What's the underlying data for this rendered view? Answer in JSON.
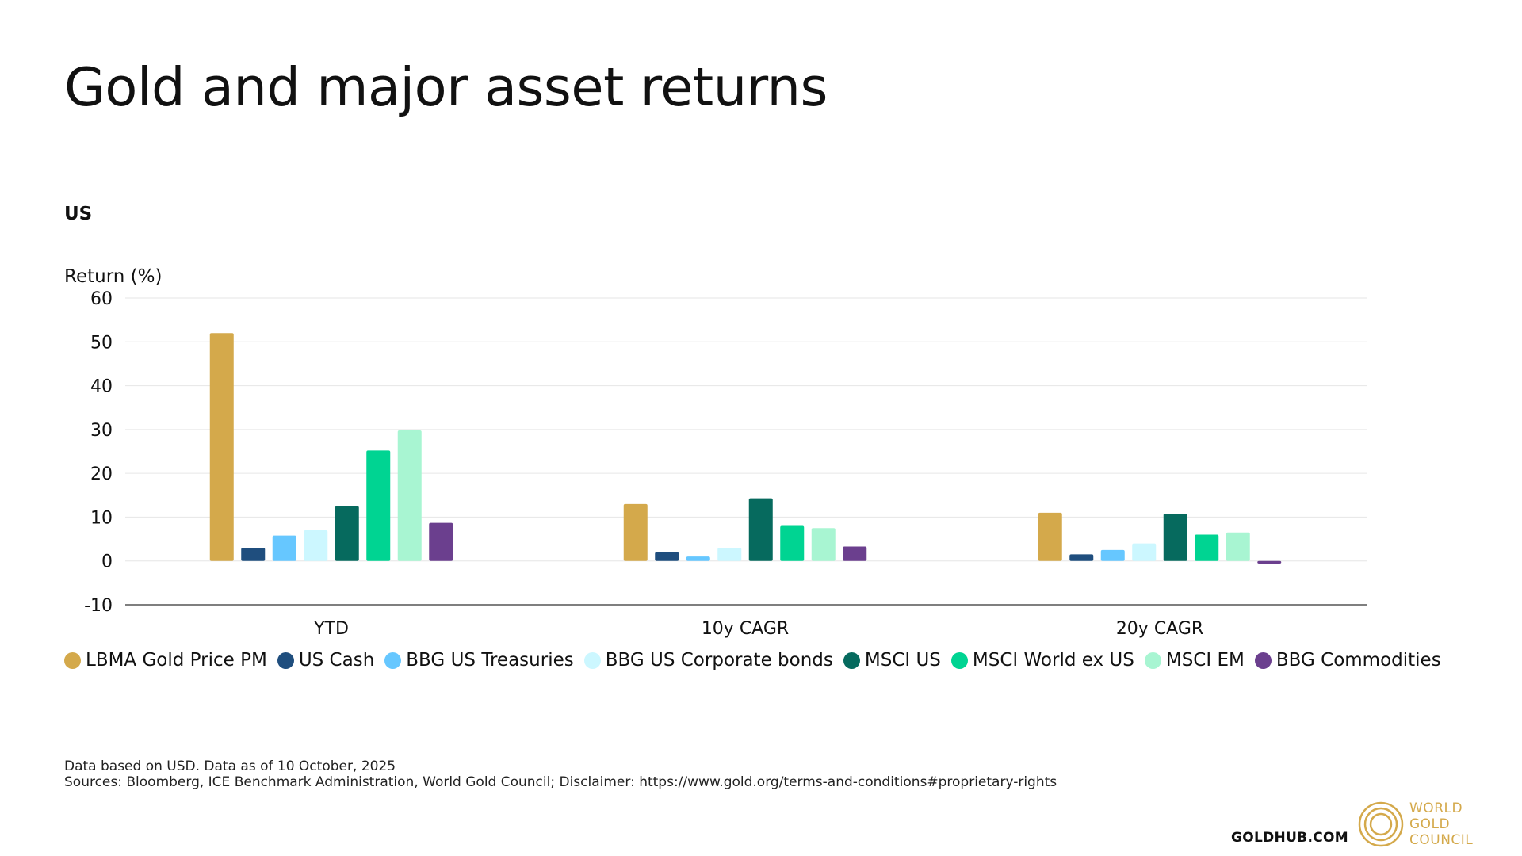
{
  "title": "Gold and major asset returns",
  "subtitle": "US",
  "chart_data": {
    "type": "bar",
    "ylabel": "Return (%)",
    "ylim": [
      -10,
      60
    ],
    "yticks": [
      60,
      50,
      40,
      30,
      20,
      10,
      0,
      -10
    ],
    "grid": true,
    "legend_position": "bottom",
    "categories": [
      "YTD",
      "10y CAGR",
      "20y CAGR"
    ],
    "series": [
      {
        "name": "LBMA Gold Price PM",
        "color": "#d4a94b",
        "values": [
          52,
          13,
          11
        ]
      },
      {
        "name": "US Cash",
        "color": "#1f4e7e",
        "values": [
          3,
          2,
          1.5
        ]
      },
      {
        "name": "BBG US Treasuries",
        "color": "#66c7ff",
        "values": [
          5.8,
          1,
          2.5
        ]
      },
      {
        "name": "BBG US Corporate bonds",
        "color": "#ccf7ff",
        "values": [
          7,
          3,
          4
        ]
      },
      {
        "name": "MSCI US",
        "color": "#066a5e",
        "values": [
          12.5,
          14.3,
          10.8
        ]
      },
      {
        "name": "MSCI World ex US",
        "color": "#00d492",
        "values": [
          25.2,
          8,
          6
        ]
      },
      {
        "name": "MSCI EM",
        "color": "#a8f5d2",
        "values": [
          29.8,
          7.5,
          6.5
        ]
      },
      {
        "name": "BBG Commodities",
        "color": "#6b3f8e",
        "values": [
          8.7,
          3.3,
          -0.6
        ]
      }
    ]
  },
  "footnote": {
    "line1": "Data based on USD. Data as of 10 October, 2025",
    "line2": "Sources: Bloomberg, ICE Benchmark Administration, World Gold Council; Disclaimer: https://www.gold.org/terms-and-conditions#proprietary-rights"
  },
  "branding": {
    "site": "GOLDHUB.COM",
    "logo_line1": "WORLD",
    "logo_line2": "GOLD",
    "logo_line3": "COUNCIL"
  }
}
